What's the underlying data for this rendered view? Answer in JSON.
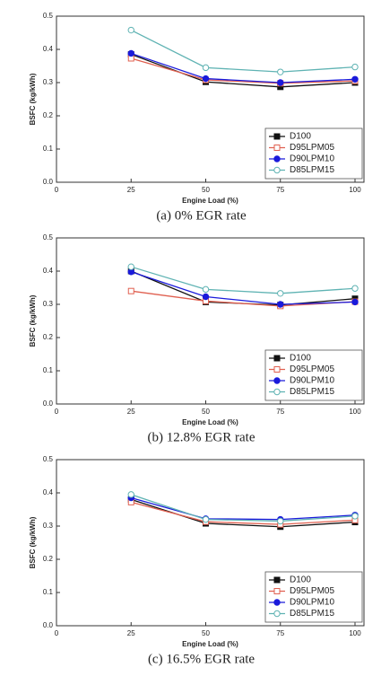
{
  "chart_data": [
    {
      "type": "line",
      "caption": "(a) 0% EGR rate",
      "xlabel": "Engine Load (%)",
      "ylabel": "BSFC (kg/kWh)",
      "x": [
        25,
        50,
        75,
        100
      ],
      "xlim": [
        0,
        103
      ],
      "xticks": [
        0,
        25,
        50,
        75,
        100
      ],
      "ylim": [
        0,
        0.5
      ],
      "yticks": [
        {
          "value": 0,
          "label": "0.0"
        },
        0.1,
        0.2,
        0.3,
        0.4,
        0.5
      ],
      "legend": "lower right",
      "series": [
        {
          "name": "D100",
          "color": "#111111",
          "marker": "square",
          "filled": true,
          "values": [
            0.385,
            0.302,
            0.287,
            0.3
          ]
        },
        {
          "name": "D95LPM05",
          "color": "#e06050",
          "marker": "square",
          "filled": false,
          "values": [
            0.373,
            0.308,
            0.298,
            0.305
          ]
        },
        {
          "name": "D90LPM10",
          "color": "#1a1adb",
          "marker": "circle",
          "filled": true,
          "values": [
            0.388,
            0.312,
            0.3,
            0.31
          ]
        },
        {
          "name": "D85LPM15",
          "color": "#5fb3b3",
          "marker": "circle",
          "filled": false,
          "values": [
            0.458,
            0.345,
            0.332,
            0.347
          ]
        }
      ]
    },
    {
      "type": "line",
      "caption": "(b) 12.8% EGR rate",
      "xlabel": "Engine Load (%)",
      "ylabel": "BSFC (kg/kWh)",
      "x": [
        25,
        50,
        75,
        100
      ],
      "xlim": [
        0,
        103
      ],
      "xticks": [
        0,
        25,
        50,
        75,
        100
      ],
      "ylim": [
        0,
        0.5
      ],
      "yticks": [
        {
          "value": 0,
          "label": "0.0"
        },
        0.1,
        0.2,
        0.3,
        0.4,
        0.5
      ],
      "legend": "lower right",
      "series": [
        {
          "name": "D100",
          "color": "#111111",
          "marker": "square",
          "filled": true,
          "values": [
            0.4,
            0.307,
            0.298,
            0.317
          ]
        },
        {
          "name": "D95LPM05",
          "color": "#e06050",
          "marker": "square",
          "filled": false,
          "values": [
            0.34,
            0.31,
            0.295,
            0.308
          ]
        },
        {
          "name": "D90LPM10",
          "color": "#1a1adb",
          "marker": "circle",
          "filled": true,
          "values": [
            0.398,
            0.323,
            0.3,
            0.307
          ]
        },
        {
          "name": "D85LPM15",
          "color": "#5fb3b3",
          "marker": "circle",
          "filled": false,
          "values": [
            0.413,
            0.345,
            0.333,
            0.348
          ]
        }
      ]
    },
    {
      "type": "line",
      "caption": "(c) 16.5% EGR rate",
      "xlabel": "Engine Load (%)",
      "ylabel": "BSFC (kg/kWh)",
      "x": [
        25,
        50,
        75,
        100
      ],
      "xlim": [
        0,
        103
      ],
      "xticks": [
        0,
        25,
        50,
        75,
        100
      ],
      "ylim": [
        0,
        0.5
      ],
      "yticks": [
        {
          "value": 0,
          "label": "0.0"
        },
        0.1,
        0.2,
        0.3,
        0.4,
        0.5
      ],
      "legend": "lower right",
      "series": [
        {
          "name": "D100",
          "color": "#111111",
          "marker": "square",
          "filled": true,
          "values": [
            0.38,
            0.308,
            0.298,
            0.312
          ]
        },
        {
          "name": "D95LPM05",
          "color": "#e06050",
          "marker": "square",
          "filled": false,
          "values": [
            0.372,
            0.313,
            0.305,
            0.318
          ]
        },
        {
          "name": "D90LPM10",
          "color": "#1a1adb",
          "marker": "circle",
          "filled": true,
          "values": [
            0.385,
            0.322,
            0.32,
            0.333
          ]
        },
        {
          "name": "D85LPM15",
          "color": "#5fb3b3",
          "marker": "circle",
          "filled": false,
          "values": [
            0.395,
            0.32,
            0.315,
            0.33
          ]
        }
      ]
    }
  ]
}
